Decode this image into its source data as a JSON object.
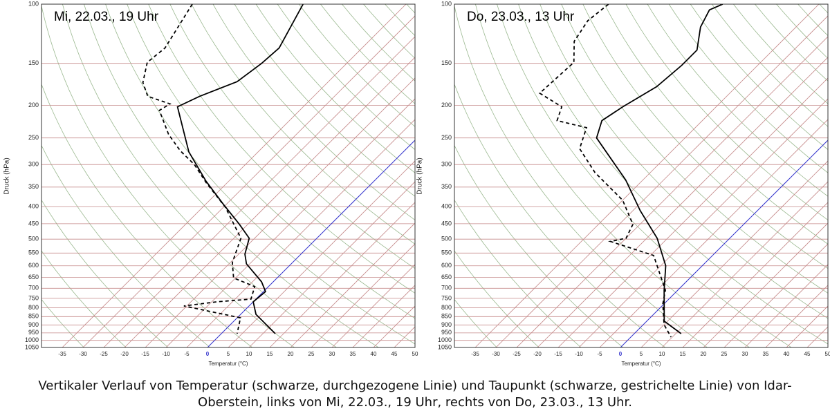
{
  "chart_data": [
    {
      "type": "skewt",
      "title": "Mi, 22.03., 19 Uhr",
      "y_label": "Druck (hPa)",
      "x_label": "Temperatur (°C)",
      "ylim": [
        100,
        1050
      ],
      "y_log": true,
      "yticks": [
        100,
        150,
        200,
        250,
        300,
        350,
        400,
        450,
        500,
        550,
        600,
        650,
        700,
        750,
        800,
        850,
        900,
        950,
        1000,
        1050
      ],
      "xlim": [
        -40,
        50
      ],
      "xticks": [
        -35,
        -30,
        -25,
        -20,
        -15,
        -10,
        -5,
        0,
        5,
        10,
        15,
        20,
        25,
        30,
        35,
        40,
        45,
        50
      ],
      "grid_color": "#c58a8a",
      "zero_isotherm_color": "#3333cc",
      "series": [
        {
          "color": "#000000",
          "dashed": false,
          "pressure": [
            100,
            135,
            150,
            170,
            188,
            202,
            275,
            336,
            394,
            452,
            497,
            554,
            592,
            670,
            716,
            768,
            837,
            955
          ],
          "temperature": [
            -59.8,
            -55,
            -55.5,
            -57,
            -62.5,
            -65.3,
            -51.7,
            -40.5,
            -30.7,
            -22,
            -16.3,
            -13.5,
            -10.8,
            -2.8,
            0.5,
            0,
            3.7,
            13
          ]
        },
        {
          "color": "#000000",
          "dashed": true,
          "pressure": [
            100,
            135,
            149,
            171,
            188,
            198,
            207,
            244,
            273,
            300,
            340,
            402,
            497,
            587,
            652,
            692,
            754,
            768,
            790,
            857,
            955
          ],
          "temperature": [
            -86.5,
            -82.5,
            -83.3,
            -79.5,
            -75,
            -67.8,
            -68.8,
            -60.8,
            -54,
            -47.3,
            -40,
            -29.5,
            -18.3,
            -14.5,
            -10.5,
            -3.3,
            -1.2,
            -8.8,
            -15.7,
            0.8,
            3.8
          ]
        }
      ]
    },
    {
      "type": "skewt",
      "title": "Do, 23.03., 13 Uhr",
      "y_label": "Druck (hPa)",
      "x_label": "Temperatur (°C)",
      "ylim": [
        100,
        1050
      ],
      "y_log": true,
      "yticks": [
        100,
        150,
        200,
        250,
        300,
        350,
        400,
        450,
        500,
        550,
        600,
        650,
        700,
        750,
        800,
        850,
        900,
        950,
        1000,
        1050
      ],
      "xlim": [
        -40,
        50
      ],
      "xticks": [
        -35,
        -30,
        -25,
        -20,
        -15,
        -10,
        -5,
        0,
        5,
        10,
        15,
        20,
        25,
        30,
        35,
        40,
        45,
        50
      ],
      "grid_color": "#c58a8a",
      "zero_isotherm_color": "#3333cc",
      "series": [
        {
          "color": "#000000",
          "dashed": false,
          "pressure": [
            100,
            104,
            117,
            137,
            152,
            176,
            202,
            222,
            250,
            333,
            411,
            497,
            600,
            709,
            877,
            955
          ],
          "temperature": [
            -58.2,
            -60,
            -58,
            -53.3,
            -53.3,
            -54.2,
            -57.5,
            -59.2,
            -56.3,
            -39.2,
            -28.3,
            -17.5,
            -8.8,
            -3.3,
            4.2,
            11.3
          ]
        },
        {
          "color": "#000000",
          "dashed": true,
          "pressure": [
            100,
            112,
            129,
            149,
            184,
            202,
            222,
            233,
            269,
            317,
            383,
            452,
            497,
            508,
            559,
            709,
            779,
            898,
            978
          ],
          "temperature": [
            -85.7,
            -86.7,
            -85,
            -80,
            -80.8,
            -72.2,
            -70,
            -61.2,
            -57.8,
            -48.3,
            -35,
            -26.7,
            -25,
            -28,
            -14.2,
            -3,
            -0.3,
            5,
            9.7
          ]
        }
      ]
    }
  ],
  "caption": [
    "Vertikaler Verlauf von Temperatur (schwarze, durchgezogene Linie) und Taupunkt (schwarze, gestrichelte Linie) von Idar-",
    "Oberstein, links von Mi, 22.03., 19 Uhr, rechts von Do, 23.03., 13 Uhr."
  ]
}
